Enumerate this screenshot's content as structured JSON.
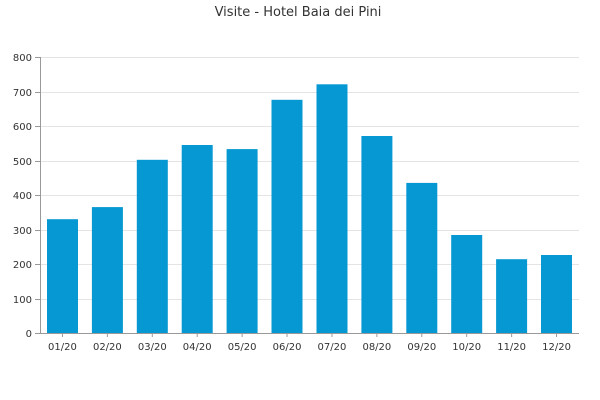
{
  "chart_data": {
    "type": "bar",
    "title": "Visite - Hotel Baia dei Pini",
    "xlabel": "",
    "ylabel": "",
    "categories": [
      "01/20",
      "02/20",
      "03/20",
      "04/20",
      "05/20",
      "06/20",
      "07/20",
      "08/20",
      "09/20",
      "10/20",
      "11/20",
      "12/20"
    ],
    "values": [
      330,
      365,
      502,
      545,
      533,
      676,
      721,
      571,
      435,
      284,
      214,
      226
    ],
    "ylim": [
      0,
      800
    ],
    "yticks": [
      "0",
      "100",
      "200",
      "300",
      "400",
      "500",
      "600",
      "700",
      "800"
    ],
    "grid": true,
    "legend": "none",
    "colors": {
      "bar": "#0598d2",
      "grid": "#e4e4e4",
      "axis": "#999999",
      "text": "#333333"
    }
  }
}
